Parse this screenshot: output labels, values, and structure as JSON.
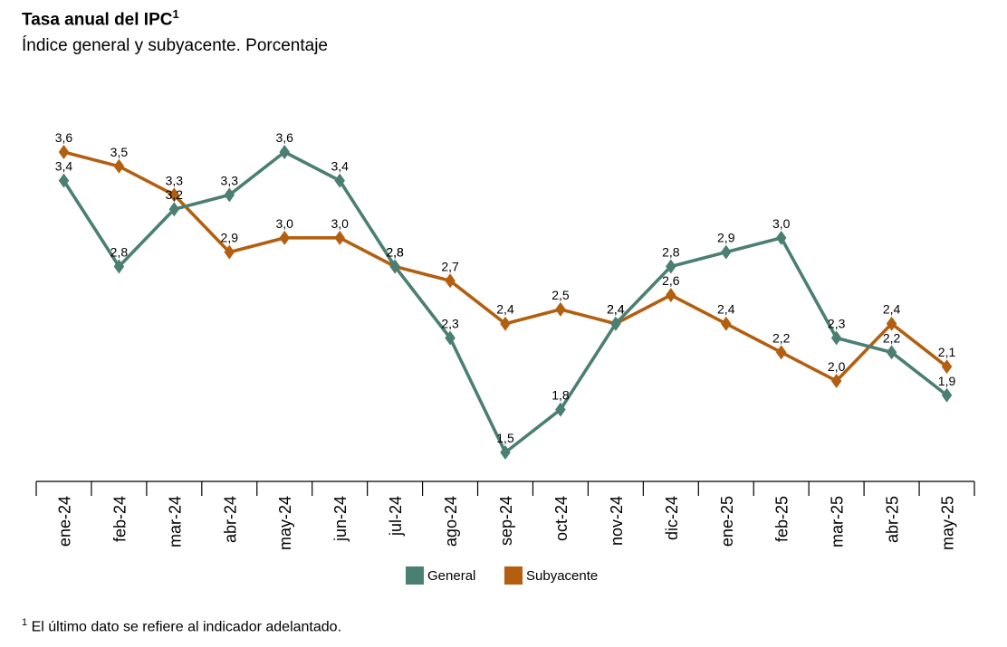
{
  "title": "Tasa anual del IPC",
  "title_sup": "1",
  "subtitle": "Índice general y subyacente. Porcentaje",
  "footnote_sup": "1",
  "footnote": "El último dato se refiere al indicador adelantado.",
  "chart_data": {
    "type": "line",
    "categories": [
      "ene-24",
      "feb-24",
      "mar-24",
      "abr-24",
      "may-24",
      "jun-24",
      "jul-24",
      "ago-24",
      "sep-24",
      "oct-24",
      "nov-24",
      "dic-24",
      "ene-25",
      "feb-25",
      "mar-25",
      "abr-25",
      "may-25"
    ],
    "series": [
      {
        "name": "General",
        "color": "#4a7f72",
        "values": [
          3.4,
          2.8,
          3.2,
          3.3,
          3.6,
          3.4,
          2.8,
          2.3,
          1.5,
          1.8,
          2.4,
          2.8,
          2.9,
          3.0,
          2.3,
          2.2,
          1.9
        ],
        "labels": [
          "3,4",
          "2,8",
          "3,2",
          "3,3",
          "3,6",
          "3,4",
          "2,8",
          "2,3",
          "1,5",
          "1,8",
          "2,4",
          "2,8",
          "2,9",
          "3,0",
          "2,3",
          "2,2",
          "1,9"
        ]
      },
      {
        "name": "Subyacente",
        "color": "#b35f0f",
        "values": [
          3.6,
          3.5,
          3.3,
          2.9,
          3.0,
          3.0,
          2.8,
          2.7,
          2.4,
          2.5,
          2.4,
          2.6,
          2.4,
          2.2,
          2.0,
          2.4,
          2.1
        ],
        "labels": [
          "3,6",
          "3,5",
          "3,3",
          "2,9",
          "3,0",
          "3,0",
          "2,8",
          "2,7",
          "2,4",
          "2,5",
          "2,4",
          "2,6",
          "2,4",
          "2,2",
          "2,0",
          "2,4",
          "2,1"
        ]
      }
    ],
    "ylim": [
      1.3,
      3.8
    ],
    "grid": false,
    "legend": "bottom-center",
    "marker": "diamond"
  }
}
